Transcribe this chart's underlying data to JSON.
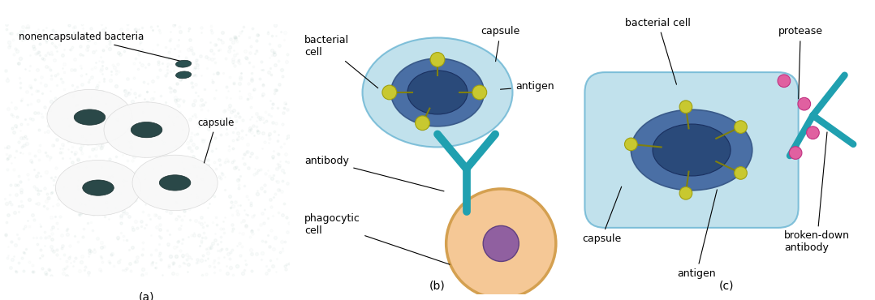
{
  "fig_bg": "#ffffff",
  "micrograph_color": "#b0c8c0",
  "panel_a_label": "(a)",
  "panel_b_label": "(b)",
  "panel_c_label": "(c)",
  "label_nonencap": "nonencapsulated bacteria",
  "label_capsule_a": "capsule",
  "label_bacterial_cell_b": "bacterial\ncell",
  "label_capsule_b": "capsule",
  "label_antigen_b": "antigen",
  "label_antibody_b": "antibody",
  "label_phagocytic": "phagocytic\ncell",
  "label_bacterial_cell_c": "bacterial cell",
  "label_protease": "protease",
  "label_capsule_c": "capsule",
  "label_antigen_c": "antigen",
  "label_broken": "broken-down\nantibody",
  "capsule_fill": "#add8e6",
  "capsule_edge": "#60b0d0",
  "bacteria_inner": "#4a6fa5",
  "bacteria_core": "#2a4a7a",
  "antigen_color": "#c8c830",
  "antigen_edge": "#a0a010",
  "antigen_stem": "#808010",
  "antibody_color": "#20a0b0",
  "phago_fill": "#f5c896",
  "phago_border": "#d4a050",
  "nucleus_color": "#9060a0",
  "nucleus_edge": "#604080",
  "protease_color": "#e060a0",
  "protease_edge": "#c03080",
  "font_size": 9
}
